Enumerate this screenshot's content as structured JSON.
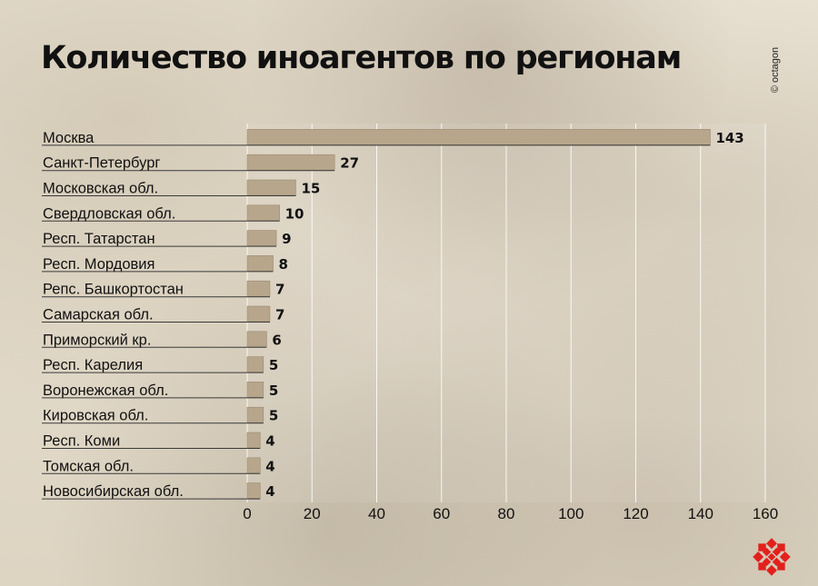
{
  "title": "Количество иноагентов по регионам",
  "credit": "© octagon",
  "colors": {
    "bar": "#b7a68b",
    "bar_stroke": "#9b8a70",
    "text": "#111111",
    "grid": "#ffffff",
    "rule": "#3a3a3a",
    "logo": "#e2201c"
  },
  "logo_icon": "octagon-logo-icon",
  "chart_data": {
    "type": "bar",
    "orientation": "horizontal",
    "categories": [
      "Москва",
      "Санкт-Петербург",
      "Московская обл.",
      "Свердловская обл.",
      "Респ. Татарстан",
      "Респ. Мордовия",
      "Репс. Башкортостан",
      "Самарская обл.",
      "Приморский кр.",
      "Респ. Карелия",
      "Воронежская обл.",
      "Кировская обл.",
      "Респ. Коми",
      "Томская обл.",
      "Новосибирская обл."
    ],
    "values": [
      143,
      27,
      15,
      10,
      9,
      8,
      7,
      7,
      6,
      5,
      5,
      5,
      4,
      4,
      4
    ],
    "value_labels": [
      "143",
      "27",
      "15",
      "10",
      "9",
      "8",
      "7",
      "7",
      "6",
      "5",
      "5",
      "5",
      "4",
      "4",
      "4"
    ],
    "xlim": [
      0,
      160
    ],
    "xticks": [
      0,
      20,
      40,
      60,
      80,
      100,
      120,
      140,
      160
    ],
    "xtick_labels": [
      "0",
      "20",
      "40",
      "60",
      "80",
      "100",
      "120",
      "140",
      "160"
    ],
    "grid": true,
    "xlabel": "",
    "ylabel": ""
  }
}
